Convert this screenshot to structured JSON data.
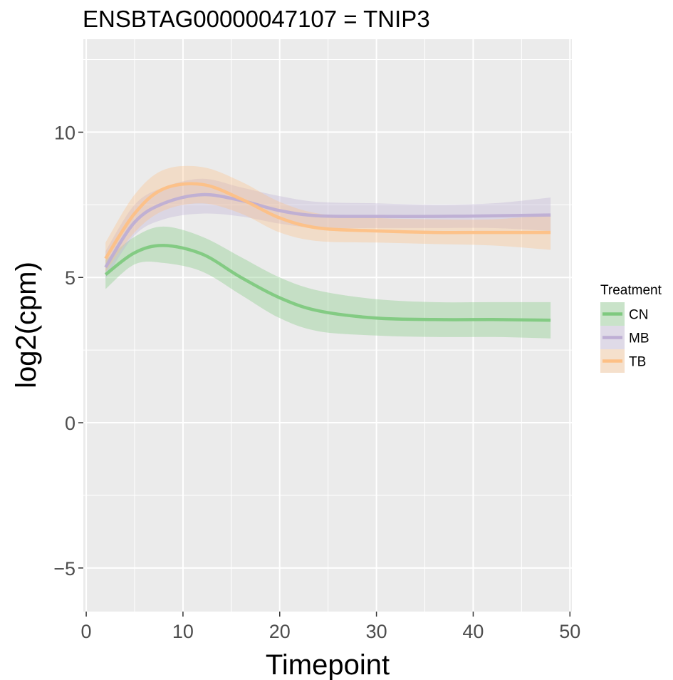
{
  "chart_data": {
    "type": "line",
    "title": "ENSBTAG00000047107  =  TNIP3",
    "xlabel": "Timepoint",
    "ylabel": "log2(cpm)",
    "xlim": [
      -0.3,
      50.2
    ],
    "ylim": [
      -6.5,
      13.2
    ],
    "x_ticks": [
      0,
      10,
      20,
      30,
      40,
      50
    ],
    "y_ticks": [
      -5,
      0,
      5,
      10
    ],
    "x_tick_labels": [
      "0",
      "10",
      "20",
      "30",
      "40",
      "50"
    ],
    "y_tick_labels": [
      "−5",
      "0",
      "5",
      "10"
    ],
    "grid": true,
    "legend_position": "right",
    "legend_title": "Treatment",
    "x": [
      2,
      5,
      8,
      12,
      16,
      20,
      24,
      30,
      36,
      42,
      48
    ],
    "series": [
      {
        "name": "CN",
        "color": "#7fc97f",
        "values": [
          5.1,
          5.85,
          6.1,
          5.8,
          5.0,
          4.3,
          3.85,
          3.6,
          3.55,
          3.55,
          3.53
        ],
        "lower": [
          4.6,
          5.45,
          5.5,
          5.2,
          4.4,
          3.6,
          3.15,
          3.0,
          2.95,
          2.95,
          2.9
        ],
        "upper": [
          5.6,
          6.4,
          6.75,
          6.4,
          5.7,
          5.0,
          4.55,
          4.25,
          4.15,
          4.15,
          4.15
        ]
      },
      {
        "name": "MB",
        "color": "#beaed4",
        "values": [
          5.35,
          6.9,
          7.55,
          7.85,
          7.65,
          7.3,
          7.12,
          7.1,
          7.1,
          7.12,
          7.15
        ],
        "lower": [
          4.95,
          6.45,
          7.0,
          7.2,
          7.1,
          6.85,
          6.7,
          6.7,
          6.7,
          6.7,
          6.6
        ],
        "upper": [
          5.9,
          7.5,
          8.1,
          8.4,
          8.1,
          7.8,
          7.6,
          7.55,
          7.5,
          7.55,
          7.75
        ]
      },
      {
        "name": "TB",
        "color": "#fdc086",
        "values": [
          5.65,
          7.2,
          8.05,
          8.2,
          7.7,
          7.05,
          6.7,
          6.6,
          6.55,
          6.55,
          6.55
        ],
        "lower": [
          5.2,
          6.55,
          7.3,
          7.55,
          7.2,
          6.55,
          6.25,
          6.2,
          6.15,
          6.1,
          5.95
        ],
        "upper": [
          6.2,
          7.85,
          8.7,
          8.8,
          8.3,
          7.6,
          7.2,
          7.05,
          7.0,
          7.0,
          7.15
        ]
      }
    ]
  }
}
